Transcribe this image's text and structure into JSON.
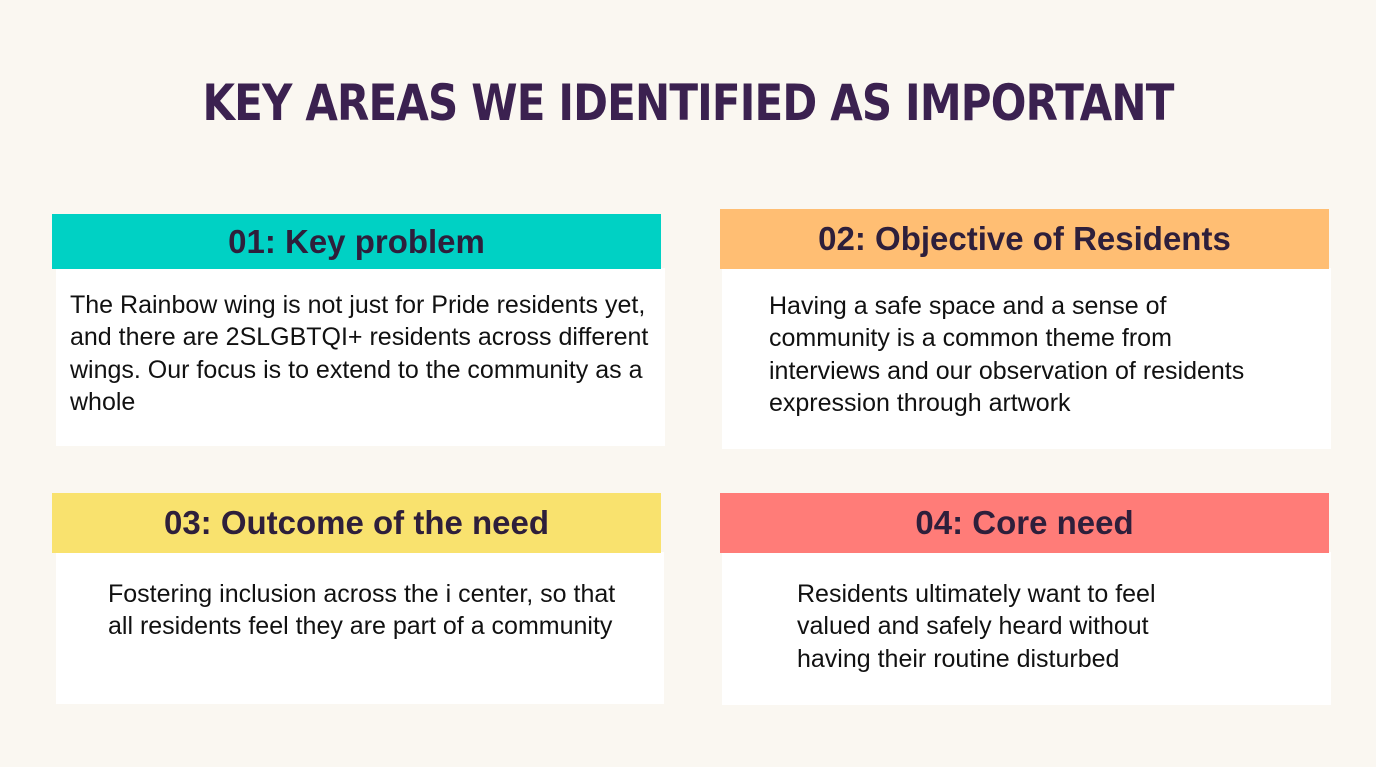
{
  "title": "KEY AREAS WE IDENTIFIED AS IMPORTANT",
  "colors": {
    "background": "#faf7f1",
    "title": "#3b2150",
    "card_1_header": "#00d1c4",
    "card_2_header": "#ffbe73",
    "card_3_header": "#f9e26e",
    "card_4_header": "#ff7c78"
  },
  "cards": [
    {
      "heading": "01: Key problem",
      "body": "The Rainbow wing is not just for Pride residents yet, and there are 2SLGBTQI+ residents across different wings. Our focus is to extend to the community as a whole"
    },
    {
      "heading": "02: Objective of Residents",
      "body": "Having a safe space and a sense of community is a common theme from interviews and our observation of residents expression through artwork"
    },
    {
      "heading": "03: Outcome of the need",
      "body": "Fostering inclusion across the i center, so that all residents feel they are part of a community"
    },
    {
      "heading": "04: Core need",
      "body": "Residents ultimately want to feel valued and safely heard without having their routine disturbed"
    }
  ]
}
